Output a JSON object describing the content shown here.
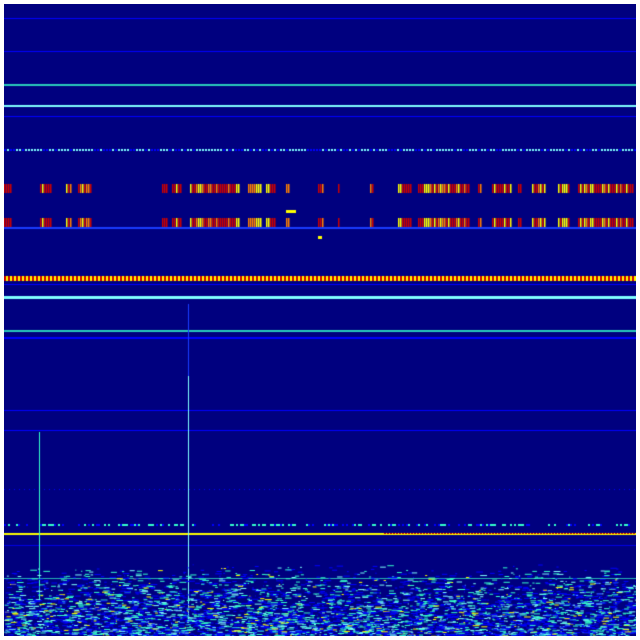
{
  "colors": {
    "background": "#00007f",
    "blue": "#0000ff",
    "bright_blue": "#1a3cff",
    "cyan": "#33ffcc",
    "light_cyan": "#80ffff",
    "yellow": "#ffff00",
    "orange": "#ff8000",
    "red": "#cc0000",
    "frame": "#ffffff"
  },
  "colormap": "jet"
}
